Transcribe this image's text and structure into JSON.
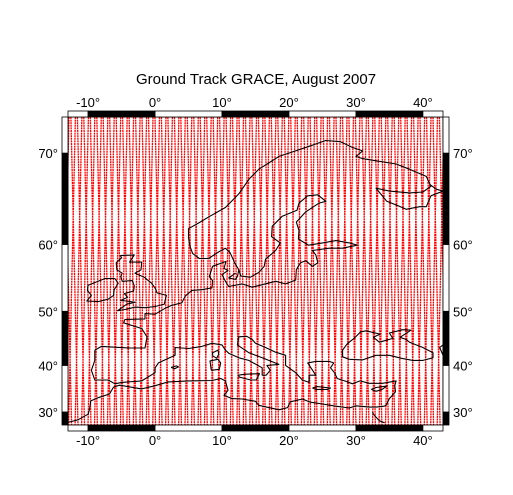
{
  "title": "Ground Track GRACE, August 2007",
  "map": {
    "projection": "mercator",
    "lon_range": [
      -13,
      43
    ],
    "lat_range": [
      27,
      73
    ],
    "frame": "alternating black/white bars every 10 degrees",
    "colors": {
      "track": "#ff0000",
      "coastline": "#000000",
      "frame_dark": "#000000",
      "frame_light": "#ffffff",
      "background": "#ffffff"
    }
  },
  "x_ticks": [
    {
      "value": -10,
      "label": "-10°"
    },
    {
      "value": 0,
      "label": "0°"
    },
    {
      "value": 10,
      "label": "10°"
    },
    {
      "value": 20,
      "label": "20°"
    },
    {
      "value": 30,
      "label": "30°"
    },
    {
      "value": 40,
      "label": "40°"
    }
  ],
  "y_ticks": [
    {
      "value": 30,
      "label": "30°"
    },
    {
      "value": 40,
      "label": "40°"
    },
    {
      "value": 50,
      "label": "50°"
    },
    {
      "value": 60,
      "label": "60°"
    },
    {
      "value": 70,
      "label": "70°"
    }
  ],
  "ground_track": {
    "satellite": "GRACE",
    "period": "August 2007",
    "pattern": "dense ascending/descending passes covering the whole map"
  },
  "coastlines": [
    {
      "name": "iberia-france-italy-balkans",
      "points": [
        [
          -9,
          43
        ],
        [
          -9,
          41
        ],
        [
          -9.5,
          39
        ],
        [
          -9,
          37
        ],
        [
          -7,
          37
        ],
        [
          -6,
          36.2
        ],
        [
          -5,
          36.5
        ],
        [
          -2,
          36.8
        ],
        [
          0,
          38.5
        ],
        [
          0,
          39.5
        ],
        [
          0.5,
          40.5
        ],
        [
          3,
          42
        ],
        [
          3,
          43.5
        ],
        [
          5,
          43.3
        ],
        [
          7,
          43.7
        ],
        [
          8.5,
          44.3
        ],
        [
          10,
          44
        ],
        [
          10.5,
          43
        ],
        [
          11,
          42.4
        ],
        [
          12.5,
          41.5
        ],
        [
          14,
          41
        ],
        [
          16,
          39.5
        ],
        [
          16,
          38
        ],
        [
          16.6,
          38
        ],
        [
          17.2,
          39
        ],
        [
          16.7,
          40
        ],
        [
          18.5,
          40.2
        ],
        [
          16,
          41.5
        ],
        [
          14,
          42.5
        ],
        [
          12.3,
          44
        ],
        [
          12.5,
          45.5
        ],
        [
          13.7,
          45.6
        ],
        [
          14.5,
          45
        ],
        [
          15,
          44.3
        ],
        [
          16.5,
          43.5
        ],
        [
          18,
          42.6
        ],
        [
          19.5,
          42
        ],
        [
          19.5,
          40
        ],
        [
          21,
          38.5
        ],
        [
          22,
          37
        ],
        [
          23,
          36.5
        ],
        [
          23,
          38
        ],
        [
          24,
          38
        ],
        [
          22.8,
          40.5
        ],
        [
          24,
          40.8
        ],
        [
          26,
          40.8
        ],
        [
          26.7,
          40.5
        ]
      ]
    },
    {
      "name": "biscay-to-denmark",
      "points": [
        [
          -9,
          43
        ],
        [
          -8,
          43.7
        ],
        [
          -4,
          43.4
        ],
        [
          -1.5,
          43.4
        ],
        [
          -1.2,
          45.5
        ],
        [
          -2,
          47
        ],
        [
          -4.7,
          48
        ],
        [
          -4.5,
          48.6
        ],
        [
          -1.5,
          48.7
        ],
        [
          -1.5,
          49.6
        ],
        [
          0,
          49.5
        ],
        [
          1.5,
          50.5
        ],
        [
          2.5,
          51
        ],
        [
          4,
          51.4
        ],
        [
          4.5,
          52.5
        ],
        [
          5.5,
          53.4
        ],
        [
          7,
          53.5
        ],
        [
          8.5,
          53.8
        ],
        [
          8.6,
          54.9
        ],
        [
          8.1,
          55.5
        ],
        [
          8.6,
          57
        ],
        [
          10.6,
          57.7
        ],
        [
          10.3,
          56.7
        ],
        [
          10.9,
          56.4
        ],
        [
          10,
          55.8
        ],
        [
          10.5,
          54.8
        ],
        [
          11,
          54
        ],
        [
          13,
          54.4
        ],
        [
          14.5,
          53.9
        ],
        [
          18,
          54.8
        ],
        [
          19.5,
          54.4
        ],
        [
          21,
          55
        ],
        [
          21.1,
          56.5
        ],
        [
          21.7,
          57.5
        ],
        [
          22.5,
          57.8
        ],
        [
          23.5,
          57
        ],
        [
          24.3,
          57.5
        ],
        [
          24,
          58.6
        ],
        [
          23.5,
          59.2
        ],
        [
          26,
          59.5
        ],
        [
          28,
          59.5
        ],
        [
          30.2,
          59.9
        ]
      ]
    },
    {
      "name": "scandinavia",
      "points": [
        [
          30.2,
          59.9
        ],
        [
          29,
          60.2
        ],
        [
          27,
          60.5
        ],
        [
          25,
          60.2
        ],
        [
          22.9,
          59.9
        ],
        [
          21.4,
          60.7
        ],
        [
          21.5,
          61.8
        ],
        [
          21.1,
          62.8
        ],
        [
          22.5,
          64
        ],
        [
          24.5,
          65
        ],
        [
          25.5,
          65.2
        ],
        [
          24.3,
          65.9
        ],
        [
          22.8,
          65.8
        ],
        [
          21.5,
          65
        ],
        [
          21.2,
          64.2
        ],
        [
          19,
          63.5
        ],
        [
          17.5,
          62.3
        ],
        [
          17.4,
          61
        ],
        [
          18.7,
          60.2
        ],
        [
          18,
          59.2
        ],
        [
          16.5,
          58
        ],
        [
          16.3,
          57
        ],
        [
          15.5,
          56.1
        ],
        [
          14.2,
          55.4
        ],
        [
          12.8,
          55.6
        ],
        [
          12.5,
          56.5
        ],
        [
          11.9,
          57.5
        ],
        [
          11.2,
          58.9
        ],
        [
          10.5,
          59.5
        ],
        [
          9.5,
          59
        ],
        [
          8,
          58.1
        ],
        [
          6.6,
          58.1
        ],
        [
          5.6,
          58.8
        ],
        [
          5.2,
          59.8
        ],
        [
          5,
          60.9
        ],
        [
          5,
          62
        ],
        [
          6.5,
          62.7
        ],
        [
          8.2,
          63.5
        ],
        [
          10.5,
          64.5
        ],
        [
          12.5,
          66
        ],
        [
          14,
          67.5
        ],
        [
          15.5,
          68.5
        ],
        [
          17,
          69.1
        ],
        [
          18.5,
          69.7
        ],
        [
          20.5,
          70.1
        ],
        [
          23,
          70.6
        ],
        [
          25.5,
          71.1
        ],
        [
          27.7,
          71
        ],
        [
          29.5,
          70.5
        ],
        [
          31,
          70.2
        ],
        [
          30,
          69.7
        ],
        [
          31,
          69.5
        ],
        [
          33,
          69.3
        ],
        [
          36,
          69
        ],
        [
          38,
          68.5
        ],
        [
          40.5,
          67.8
        ],
        [
          41.2,
          66.8
        ],
        [
          40,
          66.2
        ],
        [
          38,
          66.1
        ],
        [
          35,
          66.3
        ],
        [
          33,
          66.6
        ],
        [
          34.6,
          65.2
        ],
        [
          36.3,
          64.7
        ],
        [
          37.5,
          64.3
        ],
        [
          39.5,
          64.6
        ],
        [
          40.5,
          64.6
        ],
        [
          41.2,
          65.8
        ],
        [
          43,
          66.3
        ]
      ]
    },
    {
      "name": "britain",
      "points": [
        [
          -5.2,
          58.5
        ],
        [
          -3.1,
          58.6
        ],
        [
          -3.8,
          57.6
        ],
        [
          -2,
          57.6
        ],
        [
          -2.1,
          56.5
        ],
        [
          -3,
          56
        ],
        [
          -1.6,
          55.4
        ],
        [
          -0.5,
          54.5
        ],
        [
          0.1,
          53.6
        ],
        [
          0.3,
          53
        ],
        [
          1.7,
          52.6
        ],
        [
          1.5,
          51.8
        ],
        [
          1.4,
          51.2
        ],
        [
          0,
          50.8
        ],
        [
          -1.5,
          50.6
        ],
        [
          -3,
          50.7
        ],
        [
          -4.5,
          50.3
        ],
        [
          -5.6,
          50.1
        ],
        [
          -4.2,
          51.2
        ],
        [
          -3,
          51.5
        ],
        [
          -4.3,
          51.7
        ],
        [
          -5.1,
          51.8
        ],
        [
          -4.1,
          52.3
        ],
        [
          -4.6,
          52.9
        ],
        [
          -3.2,
          53.3
        ],
        [
          -3.1,
          54.1
        ],
        [
          -3.4,
          54.9
        ],
        [
          -4.9,
          54.8
        ],
        [
          -5.1,
          55.5
        ],
        [
          -4.9,
          56
        ],
        [
          -5.7,
          56.5
        ],
        [
          -5.8,
          57.5
        ],
        [
          -5,
          58.2
        ],
        [
          -5.2,
          58.5
        ]
      ]
    },
    {
      "name": "ireland",
      "points": [
        [
          -6,
          55.2
        ],
        [
          -7.5,
          55.2
        ],
        [
          -8.5,
          54.8
        ],
        [
          -10,
          54.2
        ],
        [
          -10.1,
          53.4
        ],
        [
          -9.5,
          52.6
        ],
        [
          -10.2,
          51.7
        ],
        [
          -8.5,
          51.6
        ],
        [
          -7,
          52
        ],
        [
          -6.2,
          52.6
        ],
        [
          -6.1,
          53.5
        ],
        [
          -5.5,
          54.5
        ],
        [
          -6,
          55.2
        ]
      ]
    },
    {
      "name": "baltic-east-inner",
      "points": [
        [
          12.5,
          56.5
        ],
        [
          12.3,
          55.5
        ],
        [
          12,
          55.1
        ],
        [
          11,
          55.3
        ],
        [
          12,
          56
        ]
      ]
    },
    {
      "name": "black-sea-anatolia",
      "points": [
        [
          26.7,
          40.5
        ],
        [
          26.2,
          39.5
        ],
        [
          26.8,
          38.5
        ],
        [
          27.2,
          37.3
        ],
        [
          28.3,
          36.8
        ],
        [
          29.5,
          36.2
        ],
        [
          30.6,
          36.8
        ],
        [
          32,
          36.3
        ],
        [
          34,
          36.3
        ],
        [
          36,
          36.8
        ],
        [
          35.8,
          35.8
        ],
        [
          35.9,
          34.5
        ],
        [
          35,
          33
        ],
        [
          34.5,
          31.5
        ],
        [
          34.2,
          31.3
        ],
        [
          33,
          31.1
        ],
        [
          32,
          31.1
        ],
        [
          30,
          31.4
        ],
        [
          29,
          30.9
        ],
        [
          27,
          31.3
        ],
        [
          25,
          31.8
        ],
        [
          23.2,
          32.2
        ],
        [
          22,
          32.9
        ],
        [
          20.2,
          32.3
        ],
        [
          19.8,
          31
        ],
        [
          18.5,
          30.5
        ],
        [
          15.5,
          31.5
        ],
        [
          15,
          32.4
        ],
        [
          13,
          32.9
        ],
        [
          11.5,
          33
        ],
        [
          10.3,
          33.7
        ],
        [
          10.9,
          34.8
        ],
        [
          10.5,
          36.8
        ],
        [
          9.8,
          37.3
        ],
        [
          8.5,
          36.9
        ],
        [
          5,
          36.8
        ],
        [
          2,
          36.6
        ],
        [
          0,
          35.8
        ],
        [
          -2,
          35.1
        ],
        [
          -5.3,
          35.9
        ],
        [
          -6.2,
          35.5
        ],
        [
          -6.8,
          34
        ],
        [
          -8.5,
          33.2
        ],
        [
          -9.6,
          32.5
        ],
        [
          -9.8,
          30.5
        ],
        [
          -10,
          29.5
        ],
        [
          -11.5,
          28.2
        ],
        [
          -13,
          27.6
        ]
      ]
    },
    {
      "name": "black-sea",
      "points": [
        [
          29,
          41.2
        ],
        [
          31,
          41.1
        ],
        [
          33,
          42
        ],
        [
          35,
          42
        ],
        [
          36.8,
          41.4
        ],
        [
          38.5,
          41
        ],
        [
          40,
          41
        ],
        [
          41.5,
          41.5
        ],
        [
          41.5,
          42.5
        ],
        [
          40,
          43.5
        ],
        [
          38,
          44.5
        ],
        [
          37.5,
          45
        ],
        [
          36.6,
          45.4
        ],
        [
          38.2,
          46.7
        ],
        [
          37,
          46.8
        ],
        [
          35,
          46.2
        ],
        [
          35.5,
          45.2
        ],
        [
          33.5,
          44.5
        ],
        [
          32.6,
          45.4
        ],
        [
          33.6,
          46
        ],
        [
          31.5,
          46.6
        ],
        [
          30.7,
          46.4
        ],
        [
          29.8,
          45.3
        ],
        [
          28.7,
          44.2
        ],
        [
          28,
          43
        ],
        [
          28,
          41.7
        ],
        [
          29,
          41.2
        ]
      ]
    },
    {
      "name": "sardinia",
      "points": [
        [
          8.4,
          39
        ],
        [
          9.6,
          39.2
        ],
        [
          9.8,
          40.5
        ],
        [
          9.4,
          41.2
        ],
        [
          8.2,
          40.9
        ],
        [
          8.4,
          39
        ]
      ]
    },
    {
      "name": "corsica",
      "points": [
        [
          8.6,
          41.9
        ],
        [
          9.2,
          41.4
        ],
        [
          9.5,
          42.2
        ],
        [
          9.4,
          43
        ],
        [
          8.6,
          42.5
        ],
        [
          8.6,
          41.9
        ]
      ]
    },
    {
      "name": "sicily",
      "points": [
        [
          12.4,
          38
        ],
        [
          13.5,
          38.2
        ],
        [
          15.6,
          38.3
        ],
        [
          15.1,
          37
        ],
        [
          14.3,
          37
        ],
        [
          12.6,
          37.6
        ],
        [
          12.4,
          38
        ]
      ]
    },
    {
      "name": "crete",
      "points": [
        [
          23.5,
          35.3
        ],
        [
          24.2,
          35.6
        ],
        [
          26.2,
          35.3
        ],
        [
          25.8,
          35
        ],
        [
          24,
          35
        ],
        [
          23.5,
          35.3
        ]
      ]
    },
    {
      "name": "cyprus",
      "points": [
        [
          32.3,
          35
        ],
        [
          33,
          35.4
        ],
        [
          34.6,
          35.7
        ],
        [
          33.9,
          35
        ],
        [
          33,
          34.6
        ],
        [
          32.3,
          35
        ]
      ]
    },
    {
      "name": "red-sea-start",
      "points": [
        [
          32.5,
          30
        ],
        [
          32.6,
          29.5
        ],
        [
          33.5,
          28
        ],
        [
          34.3,
          27.5
        ]
      ]
    },
    {
      "name": "caspian-edge",
      "points": [
        [
          43,
          44
        ],
        [
          42.5,
          43.5
        ],
        [
          43,
          42
        ]
      ]
    },
    {
      "name": "balearic",
      "points": [
        [
          2.4,
          39.6
        ],
        [
          3.2,
          39.9
        ],
        [
          3.5,
          39.7
        ],
        [
          2.9,
          39.3
        ],
        [
          2.4,
          39.6
        ]
      ]
    },
    {
      "name": "svalbard-edge",
      "points": [
        [
          41,
          67
        ],
        [
          42,
          66.5
        ],
        [
          43,
          66.3
        ]
      ]
    }
  ]
}
